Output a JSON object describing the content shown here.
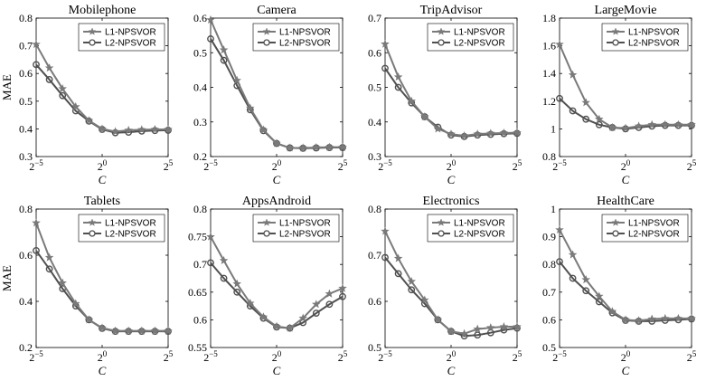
{
  "figure": {
    "ylabel": "MAE",
    "xlabel": "C",
    "x_tick_labels": [
      "2^-5",
      "2^0",
      "2^5"
    ]
  },
  "chart_data": [
    {
      "type": "line",
      "title": "Mobilephone",
      "xlabel": "C",
      "ylabel": "MAE",
      "x_exponents": [
        -5,
        -4,
        -3,
        -2,
        -1,
        0,
        1,
        2,
        3,
        4,
        5
      ],
      "ylim": [
        0.3,
        0.8
      ],
      "yticks": [
        "0.3",
        "0.4",
        "0.5",
        "0.6",
        "0.7",
        "0.8"
      ],
      "legend_position": "top-right",
      "series": [
        {
          "name": "L1-NPSVOR",
          "color": "#7a7a7a",
          "marker": "star",
          "values": [
            0.705,
            0.62,
            0.545,
            0.48,
            0.43,
            0.4,
            0.39,
            0.395,
            0.397,
            0.398,
            0.398
          ]
        },
        {
          "name": "L2-NPSVOR",
          "color": "#505050",
          "marker": "circle",
          "values": [
            0.632,
            0.578,
            0.52,
            0.465,
            0.428,
            0.398,
            0.386,
            0.388,
            0.392,
            0.394,
            0.395
          ]
        }
      ]
    },
    {
      "type": "line",
      "title": "Camera",
      "xlabel": "C",
      "ylabel": "",
      "x_exponents": [
        -5,
        -4,
        -3,
        -2,
        -1,
        0,
        1,
        2,
        3,
        4,
        5
      ],
      "ylim": [
        0.2,
        0.6
      ],
      "yticks": [
        "0.2",
        "0.3",
        "0.4",
        "0.5",
        "0.6"
      ],
      "legend_position": "top-right",
      "series": [
        {
          "name": "L1-NPSVOR",
          "color": "#7a7a7a",
          "marker": "star",
          "values": [
            0.595,
            0.508,
            0.42,
            0.34,
            0.277,
            0.238,
            0.225,
            0.225,
            0.226,
            0.227,
            0.227
          ]
        },
        {
          "name": "L2-NPSVOR",
          "color": "#505050",
          "marker": "circle",
          "values": [
            0.54,
            0.478,
            0.405,
            0.335,
            0.275,
            0.238,
            0.225,
            0.224,
            0.225,
            0.226,
            0.226
          ]
        }
      ]
    },
    {
      "type": "line",
      "title": "TripAdvisor",
      "xlabel": "C",
      "ylabel": "",
      "x_exponents": [
        -5,
        -4,
        -3,
        -2,
        -1,
        0,
        1,
        2,
        3,
        4,
        5
      ],
      "ylim": [
        0.3,
        0.7
      ],
      "yticks": [
        "0.3",
        "0.4",
        "0.5",
        "0.6",
        "0.7"
      ],
      "legend_position": "top-right",
      "series": [
        {
          "name": "L1-NPSVOR",
          "color": "#7a7a7a",
          "marker": "star",
          "values": [
            0.625,
            0.53,
            0.46,
            0.415,
            0.38,
            0.365,
            0.36,
            0.365,
            0.367,
            0.368,
            0.369
          ]
        },
        {
          "name": "L2-NPSVOR",
          "color": "#505050",
          "marker": "circle",
          "values": [
            0.555,
            0.5,
            0.455,
            0.415,
            0.385,
            0.362,
            0.358,
            0.362,
            0.364,
            0.366,
            0.367
          ]
        }
      ]
    },
    {
      "type": "line",
      "title": "LargeMovie",
      "xlabel": "C",
      "ylabel": "",
      "x_exponents": [
        -5,
        -4,
        -3,
        -2,
        -1,
        0,
        1,
        2,
        3,
        4,
        5
      ],
      "ylim": [
        0.8,
        1.8
      ],
      "yticks": [
        "0.8",
        "1",
        "1.2",
        "1.4",
        "1.6",
        "1.8"
      ],
      "legend_position": "top-right",
      "series": [
        {
          "name": "L1-NPSVOR",
          "color": "#7a7a7a",
          "marker": "star",
          "values": [
            1.61,
            1.39,
            1.19,
            1.07,
            1.01,
            1.005,
            1.02,
            1.03,
            1.03,
            1.03,
            1.03
          ]
        },
        {
          "name": "L2-NPSVOR",
          "color": "#505050",
          "marker": "circle",
          "values": [
            1.22,
            1.13,
            1.07,
            1.03,
            1.01,
            1.0,
            1.01,
            1.02,
            1.025,
            1.025,
            1.025
          ]
        }
      ]
    },
    {
      "type": "line",
      "title": "Tablets",
      "xlabel": "C",
      "ylabel": "MAE",
      "x_exponents": [
        -5,
        -4,
        -3,
        -2,
        -1,
        0,
        1,
        2,
        3,
        4,
        5
      ],
      "ylim": [
        0.2,
        0.8
      ],
      "yticks": [
        "0.2",
        "0.4",
        "0.6",
        "0.8"
      ],
      "legend_position": "top-right",
      "series": [
        {
          "name": "L1-NPSVOR",
          "color": "#7a7a7a",
          "marker": "star",
          "values": [
            0.74,
            0.59,
            0.48,
            0.39,
            0.32,
            0.285,
            0.272,
            0.272,
            0.272,
            0.272,
            0.272
          ]
        },
        {
          "name": "L2-NPSVOR",
          "color": "#505050",
          "marker": "circle",
          "values": [
            0.62,
            0.54,
            0.455,
            0.38,
            0.32,
            0.283,
            0.27,
            0.27,
            0.27,
            0.27,
            0.27
          ]
        }
      ]
    },
    {
      "type": "line",
      "title": "AppsAndroid",
      "xlabel": "C",
      "ylabel": "",
      "x_exponents": [
        -5,
        -4,
        -3,
        -2,
        -1,
        0,
        1,
        2,
        3,
        4,
        5
      ],
      "ylim": [
        0.55,
        0.8
      ],
      "yticks": [
        "0.55",
        "0.6",
        "0.65",
        "0.7",
        "0.75",
        "0.8"
      ],
      "legend_position": "top-right",
      "series": [
        {
          "name": "L1-NPSVOR",
          "color": "#7a7a7a",
          "marker": "star",
          "values": [
            0.75,
            0.707,
            0.665,
            0.63,
            0.605,
            0.588,
            0.585,
            0.603,
            0.628,
            0.647,
            0.657
          ]
        },
        {
          "name": "L2-NPSVOR",
          "color": "#505050",
          "marker": "circle",
          "values": [
            0.703,
            0.675,
            0.65,
            0.625,
            0.603,
            0.587,
            0.585,
            0.595,
            0.612,
            0.628,
            0.642
          ]
        }
      ]
    },
    {
      "type": "line",
      "title": "Electronics",
      "xlabel": "C",
      "ylabel": "",
      "x_exponents": [
        -5,
        -4,
        -3,
        -2,
        -1,
        0,
        1,
        2,
        3,
        4,
        5
      ],
      "ylim": [
        0.5,
        0.8
      ],
      "yticks": [
        "0.5",
        "0.6",
        "0.7",
        "0.8"
      ],
      "legend_position": "top-right",
      "series": [
        {
          "name": "L1-NPSVOR",
          "color": "#7a7a7a",
          "marker": "star",
          "values": [
            0.752,
            0.693,
            0.643,
            0.603,
            0.56,
            0.535,
            0.53,
            0.54,
            0.543,
            0.545,
            0.545
          ]
        },
        {
          "name": "L2-NPSVOR",
          "color": "#505050",
          "marker": "circle",
          "values": [
            0.695,
            0.66,
            0.625,
            0.595,
            0.56,
            0.535,
            0.525,
            0.527,
            0.532,
            0.538,
            0.542
          ]
        }
      ]
    },
    {
      "type": "line",
      "title": "HealthCare",
      "xlabel": "C",
      "ylabel": "",
      "x_exponents": [
        -5,
        -4,
        -3,
        -2,
        -1,
        0,
        1,
        2,
        3,
        4,
        5
      ],
      "ylim": [
        0.5,
        1.0
      ],
      "yticks": [
        "0.5",
        "0.6",
        "0.7",
        "0.8",
        "0.9",
        "1"
      ],
      "legend_position": "top-right",
      "series": [
        {
          "name": "L1-NPSVOR",
          "color": "#7a7a7a",
          "marker": "star",
          "values": [
            0.925,
            0.835,
            0.745,
            0.685,
            0.63,
            0.6,
            0.597,
            0.603,
            0.605,
            0.605,
            0.605
          ]
        },
        {
          "name": "L2-NPSVOR",
          "color": "#505050",
          "marker": "circle",
          "values": [
            0.81,
            0.75,
            0.705,
            0.665,
            0.625,
            0.598,
            0.595,
            0.595,
            0.598,
            0.6,
            0.603
          ]
        }
      ]
    }
  ]
}
